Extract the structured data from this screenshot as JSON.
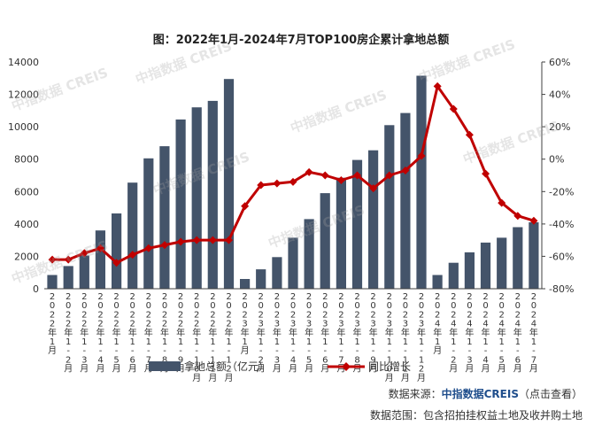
{
  "title": "图：2022年1月-2024年7月TOP100房企累计拿地总额",
  "watermark": "中指数据 CREIS",
  "source": {
    "prefix": "数据来源：",
    "brand": "中指数据CREIS",
    "suffix": "（点击查看）"
  },
  "scope": "数据范围：包含招拍挂权益土地及收并购土地",
  "colors": {
    "bar": "#44546a",
    "line": "#c00000",
    "axis": "#404040"
  },
  "chart_data": {
    "type": "bar",
    "categories": [
      "2022年1月",
      "2022年1-2月",
      "2022年1-3月",
      "2022年1-4月",
      "2022年1-5月",
      "2022年1-6月",
      "2022年1-7月",
      "2022年1-8月",
      "2022年1-9月",
      "2022年1-10月",
      "2022年1-11月",
      "2022年1-12月",
      "2023年1月",
      "2023年1-2月",
      "2023年1-3月",
      "2023年1-4月",
      "2023年1-5月",
      "2023年1-6月",
      "2023年1-7月",
      "2023年1-8月",
      "2023年1-9月",
      "2023年1-10月",
      "2023年1-11月",
      "2023年1-12月",
      "2024年1月",
      "2024年1-2月",
      "2024年1-3月",
      "2024年1-4月",
      "2024年1-5月",
      "2024年1-6月",
      "2024年1-7月"
    ],
    "series": [
      {
        "name": "拿地总额（亿元）",
        "type": "bar",
        "axis": "left",
        "values": [
          850,
          1400,
          2050,
          3600,
          4650,
          6550,
          8050,
          8800,
          10450,
          11200,
          11600,
          12950,
          600,
          1200,
          1950,
          3150,
          4300,
          5900,
          6850,
          7950,
          8550,
          10100,
          10850,
          13150,
          850,
          1600,
          2250,
          2850,
          3150,
          3800,
          4100
        ]
      },
      {
        "name": "同比增长",
        "type": "line",
        "axis": "right",
        "values": [
          -62,
          -62,
          -58,
          -55,
          -64,
          -59,
          -55,
          -53,
          -51,
          -50,
          -50,
          -50,
          -29,
          -16,
          -15,
          -14,
          -8,
          -10,
          -13,
          -10,
          -18,
          -10,
          -7,
          2,
          45,
          31,
          15,
          -9,
          -27,
          -35,
          -38
        ]
      }
    ],
    "y_left": {
      "min": 0,
      "max": 14000,
      "ticks": [
        0,
        2000,
        4000,
        6000,
        8000,
        10000,
        12000,
        14000
      ]
    },
    "y_right": {
      "min": -80,
      "max": 60,
      "ticks": [
        -80,
        -60,
        -40,
        -20,
        0,
        20,
        40,
        60
      ],
      "format": "percent"
    },
    "grid": false,
    "legend_position": "bottom"
  }
}
